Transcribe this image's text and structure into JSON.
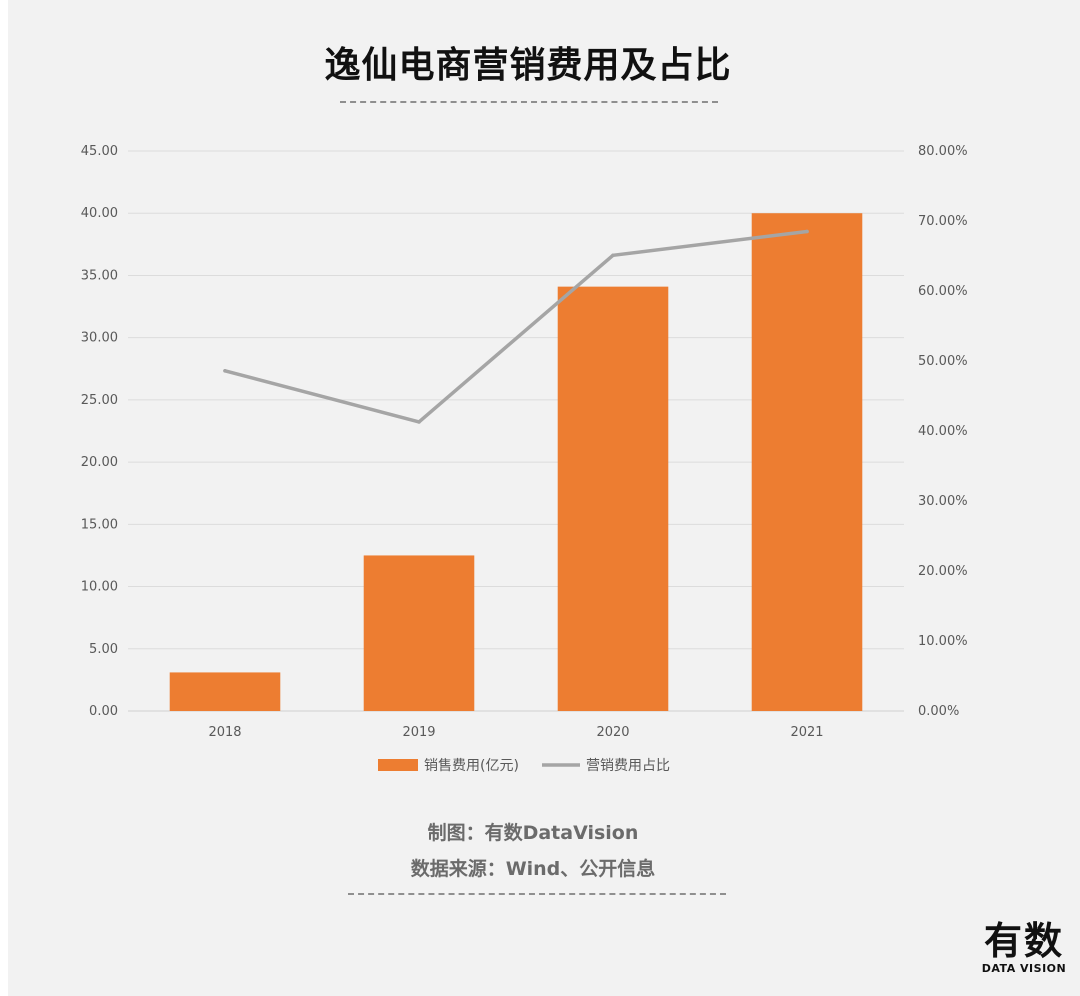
{
  "header": {
    "title": "逸仙电商营销费用及占比"
  },
  "chart_data": {
    "type": "bar",
    "categories": [
      "2018",
      "2019",
      "2020",
      "2021"
    ],
    "series": [
      {
        "name": "销售费用(亿元)",
        "type": "bar",
        "axis": "left",
        "color": "#ed7d31",
        "values": [
          3.1,
          12.5,
          34.1,
          40.0
        ]
      },
      {
        "name": "营销费用占比",
        "type": "line",
        "axis": "right",
        "color": "#a5a5a5",
        "values": [
          48.6,
          41.3,
          65.1,
          68.5
        ]
      }
    ],
    "y_left": {
      "lim": [
        0,
        45
      ],
      "ticks": [
        "0.00",
        "5.00",
        "10.00",
        "15.00",
        "20.00",
        "25.00",
        "30.00",
        "35.00",
        "40.00",
        "45.00"
      ]
    },
    "y_right": {
      "lim": [
        0,
        80
      ],
      "unit": "%",
      "ticks": [
        "0.00%",
        "10.00%",
        "20.00%",
        "30.00%",
        "40.00%",
        "50.00%",
        "60.00%",
        "70.00%",
        "80.00%"
      ]
    },
    "grid": true,
    "legend": "bottom"
  },
  "footer": {
    "credit_line": "制图：有数DataVision",
    "source_line": "数据来源：Wind、公开信息"
  },
  "logo": {
    "main": "有数",
    "sub": "DATA VISION"
  }
}
